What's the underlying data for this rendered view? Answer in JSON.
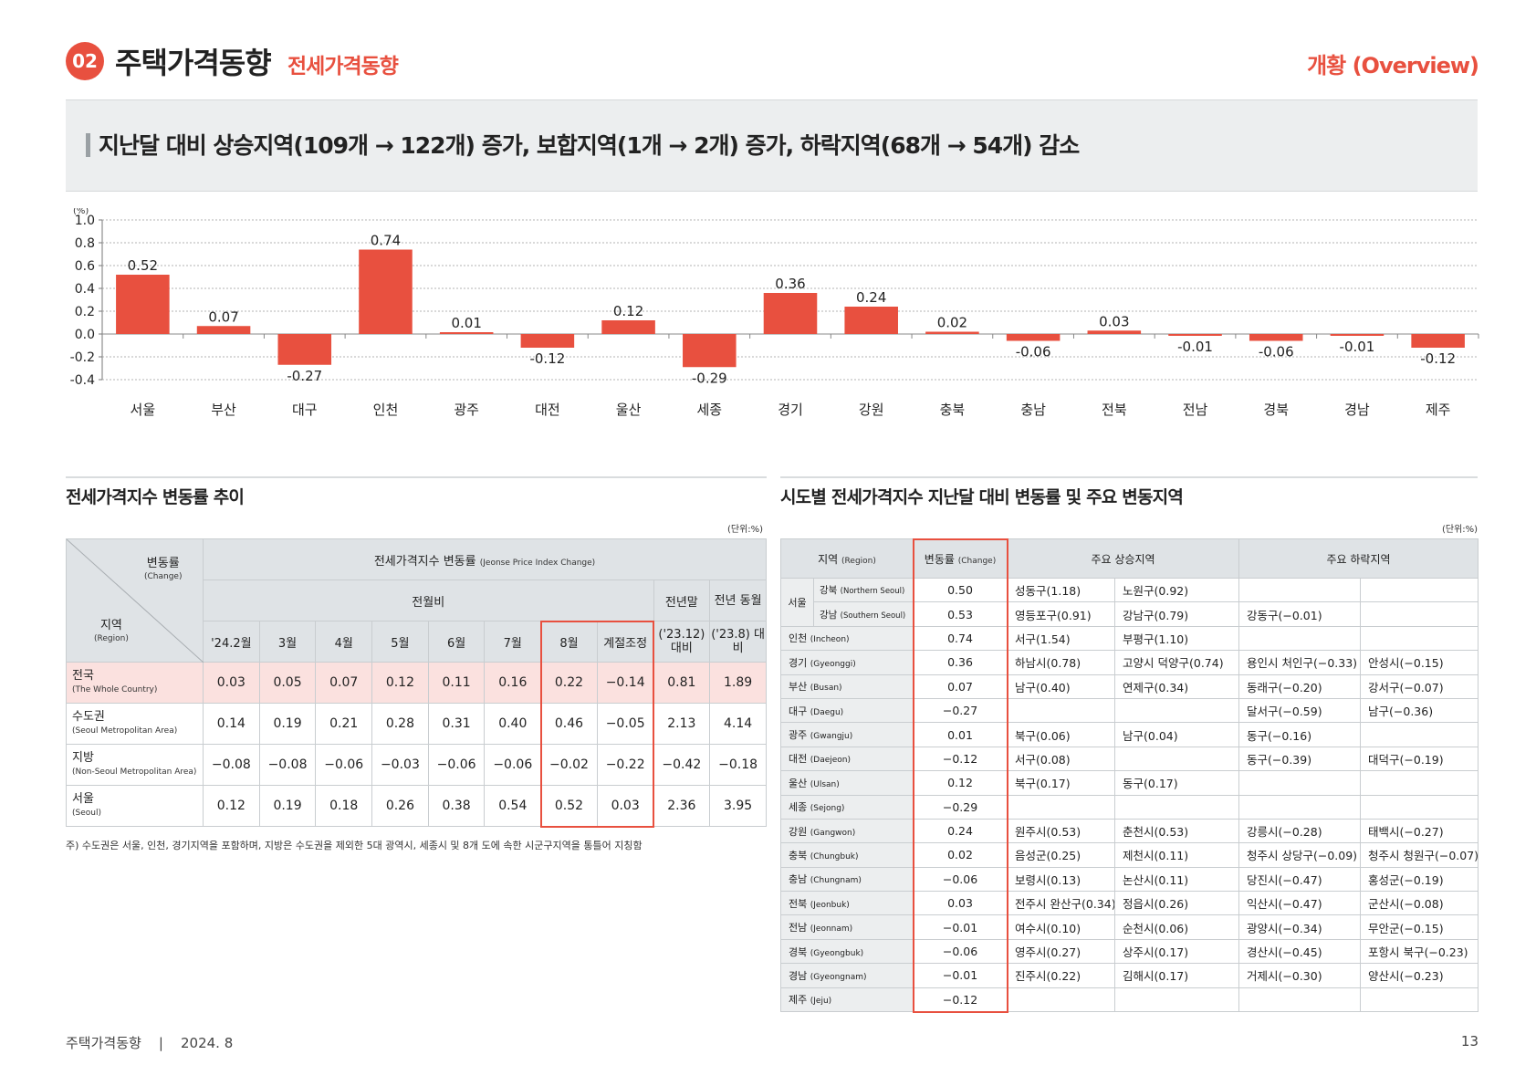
{
  "header": {
    "badge": "02",
    "title": "주택가격동향",
    "subtitle": "전세가격동향",
    "overview": "개황 (Overview)"
  },
  "summary": "지난달 대비 상승지역(109개 → 122개) 증가, 보합지역(1개 → 2개) 증가, 하락지역(68개 → 54개) 감소",
  "chart_data": {
    "type": "bar",
    "ylabel": "(%)",
    "ylim": [
      -0.4,
      1.0
    ],
    "yticks": [
      "1.0",
      "0.8",
      "0.6",
      "0.4",
      "0.2",
      "0.0",
      "-0.2",
      "-0.4"
    ],
    "grid": true,
    "categories": [
      "서울",
      "부산",
      "대구",
      "인천",
      "광주",
      "대전",
      "울산",
      "세종",
      "경기",
      "강원",
      "충북",
      "충남",
      "전북",
      "전남",
      "경북",
      "경남",
      "제주"
    ],
    "values": [
      0.52,
      0.07,
      -0.27,
      0.74,
      0.01,
      -0.12,
      0.12,
      -0.29,
      0.36,
      0.24,
      0.02,
      -0.06,
      0.03,
      -0.01,
      -0.06,
      -0.01,
      -0.12
    ],
    "labels": [
      "0.52",
      "0.07",
      "-0.27",
      "0.74",
      "0.01",
      "-0.12",
      "0.12",
      "-0.29",
      "0.36",
      "0.24",
      "0.02",
      "-0.06",
      "0.03",
      "-0.01",
      "-0.06",
      "-0.01",
      "-0.12"
    ],
    "color": "#e8503f"
  },
  "trend": {
    "title": "전세가격지수 변동률 추이",
    "unit": "(단위:%)",
    "corner_top": "변동률",
    "corner_top_en": "(Change)",
    "corner_bottom": "지역",
    "corner_bottom_en": "(Region)",
    "group_header": "전세가격지수 변동률",
    "group_header_en": "(Jeonse Price Index Change)",
    "monthly_header": "전월비",
    "prev_end_header": "전년말",
    "prev_same_header": "전년 동월",
    "columns": [
      "'24.2월",
      "3월",
      "4월",
      "5월",
      "6월",
      "7월",
      "8월",
      "계절조정"
    ],
    "prev_end_sub": "('23.12) 대비",
    "prev_same_sub": "('23.8) 대비",
    "rows": [
      {
        "label": "전국",
        "en": "(The Whole Country)",
        "values": [
          "0.03",
          "0.05",
          "0.07",
          "0.12",
          "0.11",
          "0.16",
          "0.22",
          "−0.14",
          "0.81",
          "1.89"
        ]
      },
      {
        "label": "수도권",
        "en": "(Seoul Metropolitan Area)",
        "values": [
          "0.14",
          "0.19",
          "0.21",
          "0.28",
          "0.31",
          "0.40",
          "0.46",
          "−0.05",
          "2.13",
          "4.14"
        ]
      },
      {
        "label": "지방",
        "en": "(Non-Seoul Metropolitan Area)",
        "values": [
          "−0.08",
          "−0.08",
          "−0.06",
          "−0.03",
          "−0.06",
          "−0.06",
          "−0.02",
          "−0.22",
          "−0.42",
          "−0.18"
        ]
      },
      {
        "label": "서울",
        "en": "(Seoul)",
        "values": [
          "0.12",
          "0.19",
          "0.18",
          "0.26",
          "0.38",
          "0.54",
          "0.52",
          "0.03",
          "2.36",
          "3.95"
        ]
      }
    ],
    "note": "주) 수도권은 서울, 인천, 경기지역을 포함하며, 지방은 수도권을 제외한 5대 광역시, 세종시 및 8개 도에 속한 시군구지역을 통틀어 지칭함"
  },
  "regional": {
    "title": "시도별 전세가격지수 지난달 대비 변동률 및 주요 변동지역",
    "unit": "(단위:%)",
    "headers": {
      "region": "지역",
      "region_en": "(Region)",
      "change": "변동률",
      "change_en": "(Change)",
      "rise": "주요 상승지역",
      "fall": "주요 하락지역"
    },
    "seoul": {
      "label": "서울",
      "subs": [
        {
          "name": "강북",
          "en": "(Northern Seoul)",
          "change": "0.50",
          "r1": "성동구(1.18)",
          "r2": "노원구(0.92)",
          "f1": "",
          "f2": ""
        },
        {
          "name": "강남",
          "en": "(Southern Seoul)",
          "change": "0.53",
          "r1": "영등포구(0.91)",
          "r2": "강남구(0.79)",
          "f1": "강동구(−0.01)",
          "f2": ""
        }
      ]
    },
    "rows": [
      {
        "name": "인천",
        "en": "(Incheon)",
        "change": "0.74",
        "r1": "서구(1.54)",
        "r2": "부평구(1.10)",
        "f1": "",
        "f2": ""
      },
      {
        "name": "경기",
        "en": "(Gyeonggi)",
        "change": "0.36",
        "r1": "하남시(0.78)",
        "r2": "고양시 덕양구(0.74)",
        "f1": "용인시 처인구(−0.33)",
        "f2": "안성시(−0.15)"
      },
      {
        "name": "부산",
        "en": "(Busan)",
        "change": "0.07",
        "r1": "남구(0.40)",
        "r2": "연제구(0.34)",
        "f1": "동래구(−0.20)",
        "f2": "강서구(−0.07)"
      },
      {
        "name": "대구",
        "en": "(Daegu)",
        "change": "−0.27",
        "r1": "",
        "r2": "",
        "f1": "달서구(−0.59)",
        "f2": "남구(−0.36)"
      },
      {
        "name": "광주",
        "en": "(Gwangju)",
        "change": "0.01",
        "r1": "북구(0.06)",
        "r2": "남구(0.04)",
        "f1": "동구(−0.16)",
        "f2": ""
      },
      {
        "name": "대전",
        "en": "(Daejeon)",
        "change": "−0.12",
        "r1": "서구(0.08)",
        "r2": "",
        "f1": "동구(−0.39)",
        "f2": "대덕구(−0.19)"
      },
      {
        "name": "울산",
        "en": "(Ulsan)",
        "change": "0.12",
        "r1": "북구(0.17)",
        "r2": "동구(0.17)",
        "f1": "",
        "f2": ""
      },
      {
        "name": "세종",
        "en": "(Sejong)",
        "change": "−0.29",
        "r1": "",
        "r2": "",
        "f1": "",
        "f2": ""
      },
      {
        "name": "강원",
        "en": "(Gangwon)",
        "change": "0.24",
        "r1": "원주시(0.53)",
        "r2": "춘천시(0.53)",
        "f1": "강릉시(−0.28)",
        "f2": "태백시(−0.27)"
      },
      {
        "name": "충북",
        "en": "(Chungbuk)",
        "change": "0.02",
        "r1": "음성군(0.25)",
        "r2": "제천시(0.11)",
        "f1": "청주시 상당구(−0.09)",
        "f2": "청주시 청원구(−0.07)"
      },
      {
        "name": "충남",
        "en": "(Chungnam)",
        "change": "−0.06",
        "r1": "보령시(0.13)",
        "r2": "논산시(0.11)",
        "f1": "당진시(−0.47)",
        "f2": "홍성군(−0.19)"
      },
      {
        "name": "전북",
        "en": "(Jeonbuk)",
        "change": "0.03",
        "r1": "전주시 완산구(0.34)",
        "r2": "정읍시(0.26)",
        "f1": "익산시(−0.47)",
        "f2": "군산시(−0.08)"
      },
      {
        "name": "전남",
        "en": "(Jeonnam)",
        "change": "−0.01",
        "r1": "여수시(0.10)",
        "r2": "순천시(0.06)",
        "f1": "광양시(−0.34)",
        "f2": "무안군(−0.15)"
      },
      {
        "name": "경북",
        "en": "(Gyeongbuk)",
        "change": "−0.06",
        "r1": "영주시(0.27)",
        "r2": "상주시(0.17)",
        "f1": "경산시(−0.45)",
        "f2": "포항시 북구(−0.23)"
      },
      {
        "name": "경남",
        "en": "(Gyeongnam)",
        "change": "−0.01",
        "r1": "진주시(0.22)",
        "r2": "김해시(0.17)",
        "f1": "거제시(−0.30)",
        "f2": "양산시(−0.23)"
      },
      {
        "name": "제주",
        "en": "(Jeju)",
        "change": "−0.12",
        "r1": "",
        "r2": "",
        "f1": "",
        "f2": ""
      }
    ]
  },
  "footer": {
    "left": "주택가격동향    |    2024. 8",
    "page": "13"
  }
}
